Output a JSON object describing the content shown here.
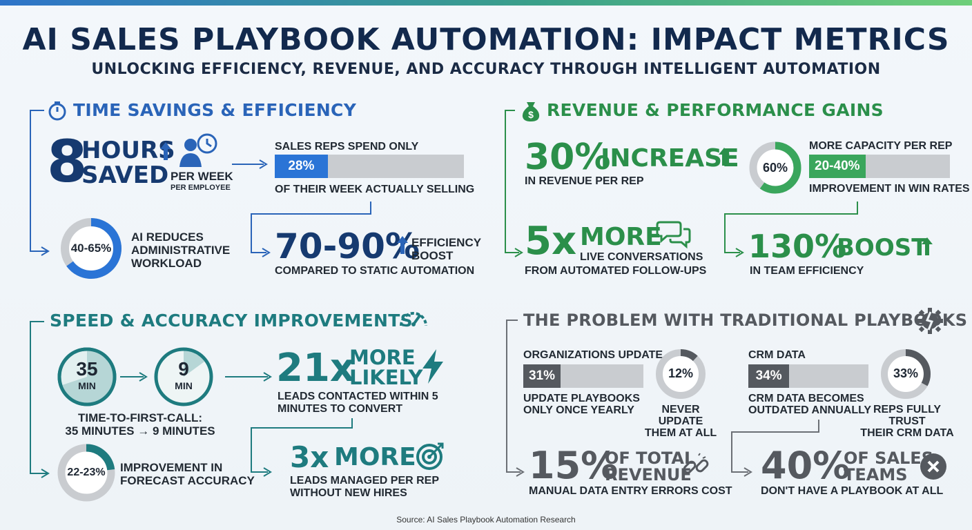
{
  "header": {
    "title": "AI SALES PLAYBOOK AUTOMATION: IMPACT METRICS",
    "subtitle": "UNLOCKING EFFICIENCY, REVENUE, AND ACCURACY THROUGH INTELLIGENT AUTOMATION"
  },
  "colors": {
    "blue": "#2a64b8",
    "navy": "#163a70",
    "green": "#2b8f4a",
    "teal": "#1e7b7f",
    "gray": "#55595f"
  },
  "time": {
    "title": "TIME SAVINGS & EFFICIENCY",
    "icon": "stopwatch-icon",
    "hours_num": "8",
    "hours_l1": "HOURS",
    "hours_l2": "SAVED",
    "per_week": "PER WEEK",
    "per_employee": "PER EMPLOYEE",
    "reps_label": "SALES REPS SPEND ONLY",
    "reps_pct": "28%",
    "reps_fill": 0.28,
    "reps_sub": "OF THEIR WEEK ACTUALLY SELLING",
    "admin_pct": "40-65%",
    "admin_fill": 0.65,
    "admin_l1": "AI REDUCES",
    "admin_l2": "ADMINISTRATIVE",
    "admin_l3": "WORKLOAD",
    "eff_num": "70-90%",
    "eff_l1": "EFFICIENCY",
    "eff_l2": "BOOST",
    "eff_sub": "COMPARED TO STATIC AUTOMATION"
  },
  "revenue": {
    "title": "REVENUE & PERFORMANCE GAINS",
    "icon": "money-bag-icon",
    "inc_num": "30%",
    "inc_word": "INCREASE",
    "inc_sub": "IN REVENUE PER REP",
    "cap_pct": "60%",
    "cap_fill": 0.6,
    "cap_label": "MORE CAPACITY PER REP",
    "win_pct": "20-40%",
    "win_fill": 0.4,
    "win_sub": "IMPROVEMENT IN WIN RATES",
    "conv_num": "5x",
    "conv_word": "MORE",
    "conv_l1": "LIVE CONVERSATIONS",
    "conv_l2": "FROM AUTOMATED FOLLOW-UPS",
    "boost_num": "130%",
    "boost_word": "BOOST",
    "boost_sub": "IN TEAM EFFICIENCY"
  },
  "speed": {
    "title": "SPEED & ACCURACY IMPROVEMENTS",
    "icon": "speedometer-icon",
    "before_num": "35",
    "before_unit": "MIN",
    "after_num": "9",
    "after_unit": "MIN",
    "call_l1": "TIME-TO-FIRST-CALL:",
    "call_l2": "35 MINUTES → 9 MINUTES",
    "likely_num": "21x",
    "likely_l1": "MORE",
    "likely_l2": "LIKELY",
    "likely_sub1": "LEADS CONTACTED WITHIN 5",
    "likely_sub2": "MINUTES TO CONVERT",
    "forecast_pct": "22-23%",
    "forecast_fill": 0.23,
    "forecast_l1": "IMPROVEMENT IN",
    "forecast_l2": "FORECAST ACCURACY",
    "leads_num": "3x",
    "leads_word": "MORE",
    "leads_sub1": "LEADS MANAGED PER REP",
    "leads_sub2": "WITHOUT NEW HIRES"
  },
  "problem": {
    "title": "THE PROBLEM WITH TRADITIONAL PLAYBOOKS",
    "icon": "broken-gear-icon",
    "org_label": "ORGANIZATIONS UPDATE",
    "org_pct": "31%",
    "org_fill": 0.31,
    "org_sub1": "UPDATE PLAYBOOKS",
    "org_sub2": "ONLY ONCE YEARLY",
    "never_pct": "12%",
    "never_fill": 0.12,
    "never_l1": "NEVER UPDATE",
    "never_l2": "THEM AT ALL",
    "crm_label": "CRM DATA",
    "crm_pct": "34%",
    "crm_fill": 0.34,
    "crm_sub1": "CRM DATA BECOMES",
    "crm_sub2": "OUTDATED ANNUALLY",
    "trust_pct": "33%",
    "trust_fill": 0.33,
    "trust_l1": "REPS FULLY TRUST",
    "trust_l2": "THEIR CRM DATA",
    "rev_num": "15%",
    "rev_l1": "OF TOTAL",
    "rev_l2": "REVENUE",
    "rev_sub": "MANUAL DATA ENTRY ERRORS COST",
    "teams_num": "40%",
    "teams_l1": "OF SALES",
    "teams_l2": "TEAMS",
    "teams_sub": "DON'T HAVE A PLAYBOOK AT ALL"
  },
  "source": "Source: AI Sales Playbook Automation Research"
}
